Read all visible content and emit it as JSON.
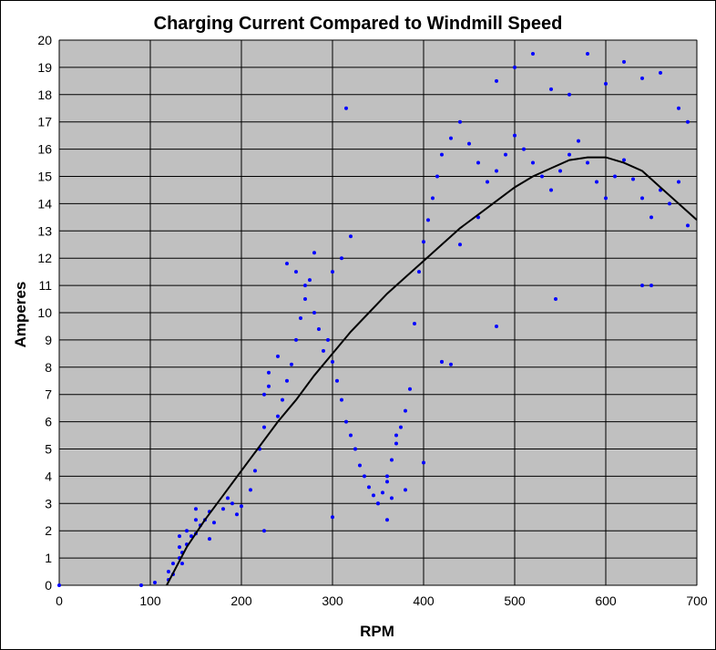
{
  "chart_data": {
    "type": "scatter",
    "title": "Charging Current Compared to Windmill Speed",
    "xlabel": "RPM",
    "ylabel": "Amperes",
    "xlim": [
      0,
      700
    ],
    "ylim": [
      0,
      20
    ],
    "xticks": [
      0,
      100,
      200,
      300,
      400,
      500,
      600,
      700
    ],
    "yticks": [
      0,
      1,
      2,
      3,
      4,
      5,
      6,
      7,
      8,
      9,
      10,
      11,
      12,
      13,
      14,
      15,
      16,
      17,
      18,
      19,
      20
    ],
    "grid": true,
    "legend": "none",
    "colors": {
      "plot_background": "#c0c0c0",
      "points": "#0000ff",
      "trendline": "#000000",
      "grid": "#000000"
    },
    "series": [
      {
        "kind": "scatter",
        "x": [
          0,
          90,
          105,
          120,
          120,
          125,
          125,
          132,
          132,
          132,
          135,
          135,
          140,
          140,
          145,
          150,
          150,
          150,
          155,
          160,
          165,
          165,
          170,
          180,
          185,
          190,
          195,
          200,
          210,
          215,
          220,
          225,
          225,
          230,
          240,
          245,
          250,
          255,
          260,
          265,
          270,
          275,
          280,
          285,
          290,
          295,
          300,
          305,
          310,
          315,
          320,
          325,
          330,
          335,
          340,
          345,
          350,
          355,
          360,
          365,
          370,
          375,
          380,
          385,
          390,
          395,
          400,
          405,
          410,
          415,
          420,
          430,
          440,
          450,
          460,
          470,
          480,
          490,
          500,
          510,
          520,
          530,
          540,
          550,
          560,
          570,
          580,
          590,
          600,
          610,
          620,
          630,
          640,
          650,
          660,
          670,
          680,
          690,
          690,
          360,
          360,
          365,
          370,
          300,
          310,
          320,
          280,
          270,
          260,
          250,
          240,
          230,
          225,
          300,
          350,
          380,
          400,
          420,
          440,
          460,
          480,
          500,
          520,
          540,
          560,
          580,
          600,
          620,
          640,
          660,
          680,
          315,
          430,
          420,
          480,
          545,
          640,
          650
        ],
        "y": [
          0,
          0,
          0.1,
          0.2,
          0.5,
          0.4,
          0.8,
          1.0,
          1.4,
          1.8,
          0.8,
          1.2,
          1.5,
          2.0,
          1.8,
          1.9,
          2.4,
          2.8,
          2.2,
          2.4,
          2.7,
          1.7,
          2.3,
          2.8,
          3.2,
          3.0,
          2.6,
          2.9,
          3.5,
          4.2,
          5.0,
          5.8,
          7.0,
          7.3,
          6.2,
          6.8,
          7.5,
          8.1,
          9.0,
          9.8,
          10.5,
          11.2,
          10.0,
          9.4,
          8.6,
          9.0,
          8.2,
          7.5,
          6.8,
          6.0,
          5.5,
          5.0,
          4.4,
          4.0,
          3.6,
          3.3,
          3.0,
          3.4,
          3.8,
          4.6,
          5.2,
          5.8,
          6.4,
          7.2,
          9.6,
          11.5,
          12.6,
          13.4,
          14.2,
          15.0,
          15.8,
          16.4,
          17.0,
          16.2,
          15.5,
          14.8,
          15.2,
          15.8,
          16.5,
          16.0,
          15.5,
          15.0,
          14.5,
          15.2,
          15.8,
          16.3,
          15.5,
          14.8,
          14.2,
          15.0,
          15.6,
          14.9,
          14.2,
          13.5,
          14.5,
          14.0,
          14.8,
          13.2,
          17.0,
          2.4,
          4.0,
          3.2,
          5.5,
          11.5,
          12.0,
          12.8,
          12.2,
          11.0,
          11.5,
          11.8,
          8.4,
          7.8,
          2.0,
          2.5,
          3.0,
          3.5,
          4.5,
          8.2,
          12.5,
          13.5,
          18.5,
          19.0,
          19.5,
          18.2,
          18.0,
          19.5,
          18.4,
          19.2,
          18.6,
          18.8,
          17.5,
          17.5,
          8.1,
          8.2,
          9.5,
          10.5,
          11.0,
          11.0
        ]
      },
      {
        "kind": "trendline",
        "x": [
          118,
          140,
          160,
          180,
          200,
          220,
          240,
          260,
          280,
          300,
          320,
          340,
          360,
          380,
          400,
          420,
          440,
          460,
          480,
          500,
          520,
          540,
          560,
          580,
          600,
          620,
          640,
          660,
          680,
          700
        ],
        "y": [
          0,
          1.4,
          2.4,
          3.3,
          4.2,
          5.1,
          6.0,
          6.8,
          7.7,
          8.5,
          9.3,
          10.0,
          10.7,
          11.3,
          11.9,
          12.5,
          13.1,
          13.6,
          14.1,
          14.6,
          15.0,
          15.3,
          15.6,
          15.7,
          15.7,
          15.5,
          15.2,
          14.6,
          14.0,
          13.4
        ]
      }
    ]
  }
}
